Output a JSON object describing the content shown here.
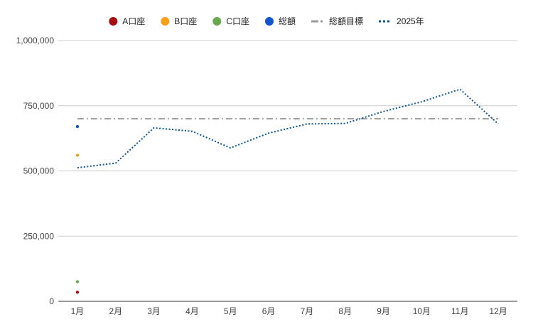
{
  "chart_data": {
    "type": "line",
    "title": "",
    "xlabel": "",
    "ylabel": "",
    "ylim": [
      0,
      1000000
    ],
    "yticks": [
      0,
      250000,
      500000,
      750000,
      1000000
    ],
    "ytick_labels": [
      "0",
      "250,000",
      "500,000",
      "750,000",
      "1,000,000"
    ],
    "categories": [
      "1月",
      "2月",
      "3月",
      "4月",
      "5月",
      "6月",
      "7月",
      "8月",
      "9月",
      "10月",
      "11月",
      "12月"
    ],
    "grid": true,
    "legend_position": "top-center",
    "series": [
      {
        "name": "A口座",
        "color": "#a50e0e",
        "style": "points",
        "values": [
          35000,
          null,
          null,
          null,
          null,
          null,
          null,
          null,
          null,
          null,
          null,
          null
        ]
      },
      {
        "name": "B口座",
        "color": "#f9a01b",
        "style": "points",
        "values": [
          560000,
          null,
          null,
          null,
          null,
          null,
          null,
          null,
          null,
          null,
          null,
          null
        ]
      },
      {
        "name": "C口座",
        "color": "#6aa84f",
        "style": "points",
        "values": [
          75000,
          null,
          null,
          null,
          null,
          null,
          null,
          null,
          null,
          null,
          null,
          null
        ]
      },
      {
        "name": "総額",
        "color": "#1155cc",
        "style": "points",
        "values": [
          670000,
          null,
          null,
          null,
          null,
          null,
          null,
          null,
          null,
          null,
          null,
          null
        ]
      },
      {
        "name": "総額目標",
        "color": "#999999",
        "style": "dashdot",
        "values": [
          700000,
          700000,
          700000,
          700000,
          700000,
          700000,
          700000,
          700000,
          700000,
          700000,
          700000,
          700000
        ]
      },
      {
        "name": "2025年",
        "color": "#0b5394",
        "style": "dotted",
        "values": [
          512000,
          530000,
          665000,
          652000,
          588000,
          645000,
          680000,
          682000,
          728000,
          765000,
          813000,
          680000
        ]
      }
    ]
  }
}
